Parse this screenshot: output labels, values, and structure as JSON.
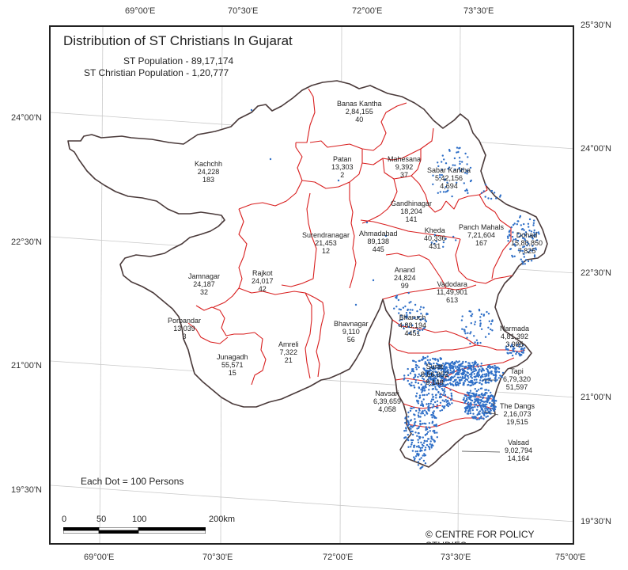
{
  "title": "Distribution of ST Christians In Gujarat",
  "st_population": "ST Population - 89,17,174",
  "st_christian_population": "ST Christian Population - 1,20,777",
  "dot_note": "Each Dot = 100 Persons",
  "credit": "© CENTRE FOR POLICY STUDIES",
  "scale": {
    "labels": [
      "0",
      "50",
      "100",
      "200"
    ],
    "unit": "km"
  },
  "lon_labels": [
    "69°00'E",
    "70°30'E",
    "72°00'E",
    "73°30'E"
  ],
  "lon_labels_bottom": [
    "69°00'E",
    "70°30'E",
    "72°00'E",
    "73°30'E",
    "75°00'E"
  ],
  "lat_labels_left": [
    "24°00'N",
    "22°30'N",
    "21°00'N",
    "19°30'N"
  ],
  "lat_labels_right": [
    "25°30'N",
    "24°00'N",
    "22°30'N",
    "21°00'N",
    "19°30'N"
  ],
  "colors": {
    "state_border": "#4a3a3a",
    "district_border": "#d81e1e",
    "dot": "#2f6fc7",
    "graticule": "#c9c9c9"
  },
  "districts": [
    {
      "id": "banas-kantha",
      "name": "Banas Kantha",
      "st": "2,84,155",
      "chr": "40"
    },
    {
      "id": "kachchh",
      "name": "Kachchh",
      "st": "24,228",
      "chr": "183"
    },
    {
      "id": "patan",
      "name": "Patan",
      "st": "13,303",
      "chr": "2"
    },
    {
      "id": "mahesana",
      "name": "Mahesana",
      "st": "9,392",
      "chr": "37"
    },
    {
      "id": "sabar-kantha",
      "name": "Sabar Kantha",
      "st": "5,42,156",
      "chr": "4,694"
    },
    {
      "id": "gandhinagar",
      "name": "Gandhinagar",
      "st": "18,204",
      "chr": "141"
    },
    {
      "id": "surendranagar",
      "name": "Surendranagar",
      "st": "21,453",
      "chr": "12"
    },
    {
      "id": "ahmadabad",
      "name": "Ahmadabad",
      "st": "89,138",
      "chr": "445"
    },
    {
      "id": "kheda",
      "name": "Kheda",
      "st": "40,336",
      "chr": "431"
    },
    {
      "id": "panch-mahals",
      "name": "Panch Mahals",
      "st": "7,21,604",
      "chr": "167"
    },
    {
      "id": "dohad",
      "name": "Dohad",
      "st": "15,80,850",
      "chr": "7,825"
    },
    {
      "id": "jamnagar",
      "name": "Jamnagar",
      "st": "24,187",
      "chr": "32"
    },
    {
      "id": "rajkot",
      "name": "Rajkot",
      "st": "24,017",
      "chr": "42"
    },
    {
      "id": "anand",
      "name": "Anand",
      "st": "24,824",
      "chr": "99"
    },
    {
      "id": "vadodara",
      "name": "Vadodara",
      "st": "11,49,901",
      "chr": "613"
    },
    {
      "id": "porbandar",
      "name": "Porbandar",
      "st": "13,039",
      "chr": "3"
    },
    {
      "id": "bharuch",
      "name": "Bharuch",
      "st": "4,88,194",
      "chr": "4451"
    },
    {
      "id": "bhavnagar",
      "name": "Bhavnagar",
      "st": "9,110",
      "chr": "56"
    },
    {
      "id": "narmada",
      "name": "Narmada",
      "st": "4,81,392",
      "chr": "3,985"
    },
    {
      "id": "amreli",
      "name": "Amreli",
      "st": "7,322",
      "chr": "21"
    },
    {
      "id": "junagadh",
      "name": "Junagadh",
      "st": "55,571",
      "chr": "15"
    },
    {
      "id": "surat",
      "name": "Surat",
      "st": "8,56,952",
      "chr": "8,149"
    },
    {
      "id": "tapi",
      "name": "Tapi",
      "st": "6,79,320",
      "chr": "51,597"
    },
    {
      "id": "navsari",
      "name": "Navsari",
      "st": "6,39,659",
      "chr": "4,058"
    },
    {
      "id": "the-dangs",
      "name": "The Dangs",
      "st": "2,16,073",
      "chr": "19,515"
    },
    {
      "id": "valsad",
      "name": "Valsad",
      "st": "9,02,794",
      "chr": "14,164"
    }
  ]
}
